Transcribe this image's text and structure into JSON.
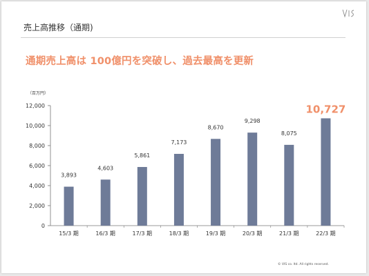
{
  "slide": {
    "title": "売上高推移（通期)",
    "headline": "通期売上高は 100億円を突破し、過去最高を更新",
    "unit": "（百万円）",
    "copyright": "© VIS co. ltd. All rights reserved.",
    "logo_icon": "vis-logo-icon",
    "colors": {
      "bar": "#6e7b98",
      "highlight": "#f0906a",
      "axis": "#777777"
    }
  },
  "chart_data": {
    "type": "bar",
    "categories": [
      "15/3 期",
      "16/3 期",
      "17/3 期",
      "18/3 期",
      "19/3 期",
      "20/3 期",
      "21/3 期",
      "22/3 期"
    ],
    "values": [
      3893,
      4603,
      5861,
      7173,
      8670,
      9298,
      8075,
      10727
    ],
    "value_labels": [
      "3,893",
      "4,603",
      "5,861",
      "7,173",
      "8,670",
      "9,298",
      "8,075",
      "10,727"
    ],
    "yticks": [
      "0",
      "2,000",
      "4,000",
      "6,000",
      "8,000",
      "10,000",
      "12,000"
    ],
    "ylim": [
      0,
      12000
    ],
    "ylabel": "（百万円）",
    "highlight_index": 7,
    "grid": false,
    "legend": "none"
  }
}
